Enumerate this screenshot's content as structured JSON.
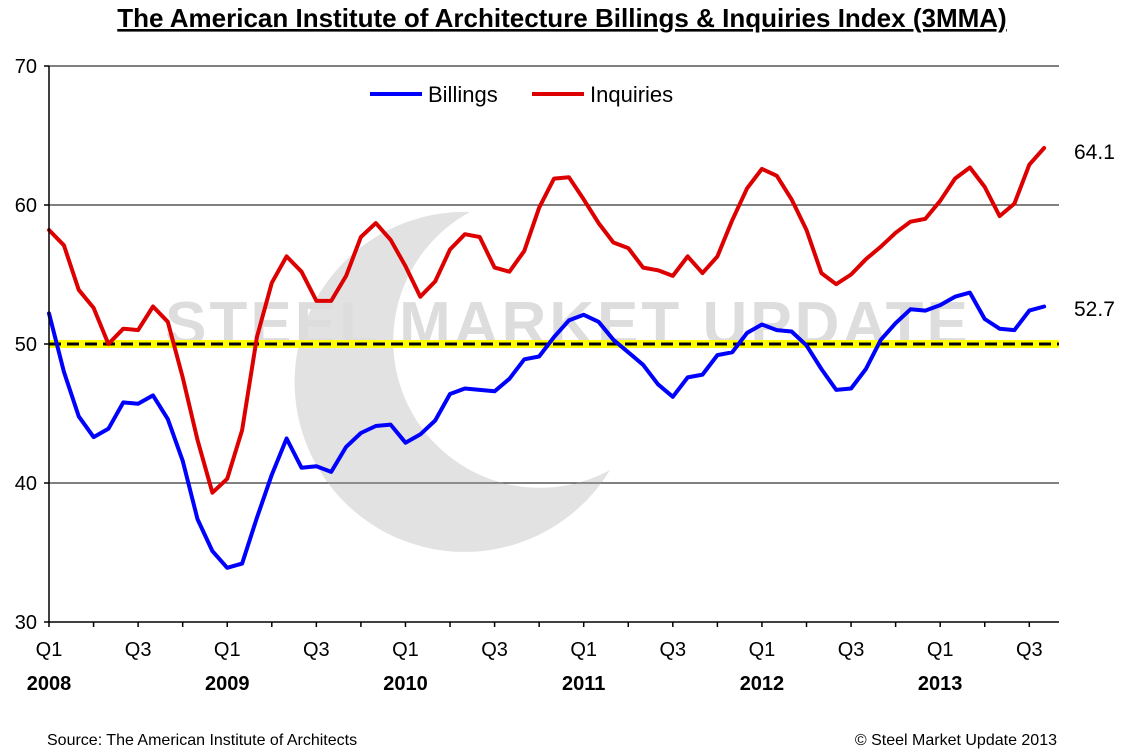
{
  "chart_data": {
    "type": "line",
    "title": "The American Institute of Architecture Billings & Inquiries Index (3MMA)",
    "ylim": [
      30,
      70
    ],
    "yticks": [
      30,
      40,
      50,
      60,
      70
    ],
    "x_tick_labels": [
      "Q1",
      "Q3",
      "Q1",
      "Q3",
      "Q1",
      "Q3",
      "Q1",
      "Q3",
      "Q1",
      "Q3",
      "Q1",
      "Q3"
    ],
    "x_tick_months": [
      0,
      6,
      12,
      18,
      24,
      30,
      36,
      42,
      48,
      54,
      60,
      66
    ],
    "year_labels": [
      "2008",
      "2009",
      "2010",
      "2011",
      "2012",
      "2013"
    ],
    "x_range_months": [
      0,
      68
    ],
    "grid": true,
    "reference_line": {
      "value": 50,
      "style": "dashed",
      "highlight_color": "#ffff00"
    },
    "watermark": "STEEL MARKET UPDATE",
    "series": [
      {
        "name": "Billings",
        "color": "#0000ff",
        "end_label": "52.7",
        "values": [
          52.2,
          48.0,
          44.8,
          43.3,
          43.9,
          45.8,
          45.7,
          46.3,
          44.6,
          41.6,
          37.4,
          35.1,
          33.9,
          34.2,
          37.5,
          40.6,
          43.2,
          41.1,
          41.2,
          40.8,
          42.6,
          43.6,
          44.1,
          44.2,
          42.9,
          43.5,
          44.5,
          46.4,
          46.8,
          46.7,
          46.6,
          47.5,
          48.9,
          49.1,
          50.5,
          51.7,
          52.1,
          51.6,
          50.3,
          49.4,
          48.5,
          47.1,
          46.2,
          47.6,
          47.8,
          49.2,
          49.4,
          50.8,
          51.4,
          51.0,
          50.9,
          49.9,
          48.2,
          46.7,
          46.8,
          48.2,
          50.3,
          51.5,
          52.5,
          52.4,
          52.8,
          53.4,
          53.7,
          51.8,
          51.1,
          51.0,
          52.4,
          52.7
        ]
      },
      {
        "name": "Inquiries",
        "color": "#dd0000",
        "end_label": "64.1",
        "values": [
          58.2,
          57.1,
          53.9,
          52.6,
          50.0,
          51.1,
          51.0,
          52.7,
          51.6,
          47.6,
          43.1,
          39.3,
          40.3,
          43.8,
          50.5,
          54.4,
          56.3,
          55.2,
          53.1,
          53.1,
          54.9,
          57.7,
          58.7,
          57.5,
          55.6,
          53.4,
          54.5,
          56.8,
          57.9,
          57.7,
          55.5,
          55.2,
          56.7,
          59.8,
          61.9,
          62.0,
          60.4,
          58.7,
          57.3,
          56.9,
          55.5,
          55.3,
          54.9,
          56.3,
          55.1,
          56.3,
          58.9,
          61.2,
          62.6,
          62.1,
          60.4,
          58.2,
          55.1,
          54.3,
          55.0,
          56.1,
          57.0,
          58.0,
          58.8,
          59.0,
          60.3,
          61.9,
          62.7,
          61.3,
          59.2,
          60.1,
          62.9,
          64.1
        ]
      }
    ]
  },
  "footer": {
    "source": "Source: The American Institute of Architects",
    "copyright": "© Steel Market Update 2013"
  }
}
